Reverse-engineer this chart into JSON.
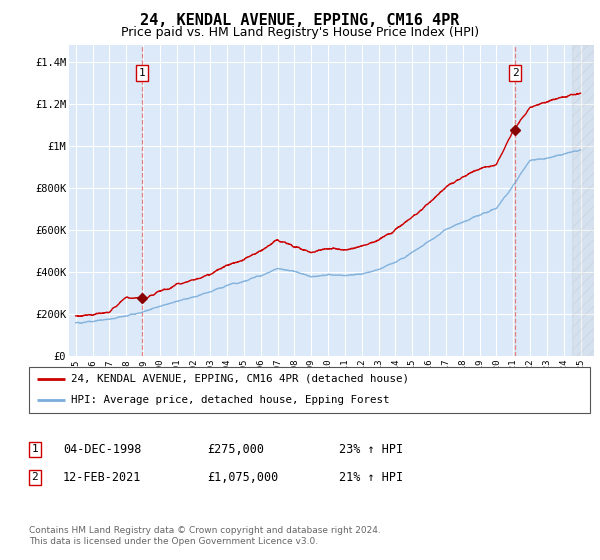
{
  "title": "24, KENDAL AVENUE, EPPING, CM16 4PR",
  "subtitle": "Price paid vs. HM Land Registry's House Price Index (HPI)",
  "title_fontsize": 11,
  "subtitle_fontsize": 9,
  "ylabel_ticks": [
    "£0",
    "£200K",
    "£400K",
    "£600K",
    "£800K",
    "£1M",
    "£1.2M",
    "£1.4M"
  ],
  "ytick_vals": [
    0,
    200000,
    400000,
    600000,
    800000,
    1000000,
    1200000,
    1400000
  ],
  "ylim": [
    0,
    1480000
  ],
  "xlim_start": 1994.6,
  "xlim_end": 2025.8,
  "plot_bg": "#dce9f8",
  "grid_color": "#ffffff",
  "red_line_color": "#cc0000",
  "blue_line_color": "#7aaddb",
  "sale1_x": 1998.92,
  "sale1_y": 275000,
  "sale1_label": "1",
  "sale2_x": 2021.12,
  "sale2_y": 1075000,
  "sale2_label": "2",
  "vline_color": "#e08080",
  "marker_color": "#880000",
  "legend_line1": "24, KENDAL AVENUE, EPPING, CM16 4PR (detached house)",
  "legend_line2": "HPI: Average price, detached house, Epping Forest",
  "table_row1": [
    "1",
    "04-DEC-1998",
    "£275,000",
    "23% ↑ HPI"
  ],
  "table_row2": [
    "2",
    "12-FEB-2021",
    "£1,075,000",
    "21% ↑ HPI"
  ],
  "footnote": "Contains HM Land Registry data © Crown copyright and database right 2024.\nThis data is licensed under the Open Government Licence v3.0.",
  "hatch_start": 2024.5,
  "hatch_end": 2026.0
}
